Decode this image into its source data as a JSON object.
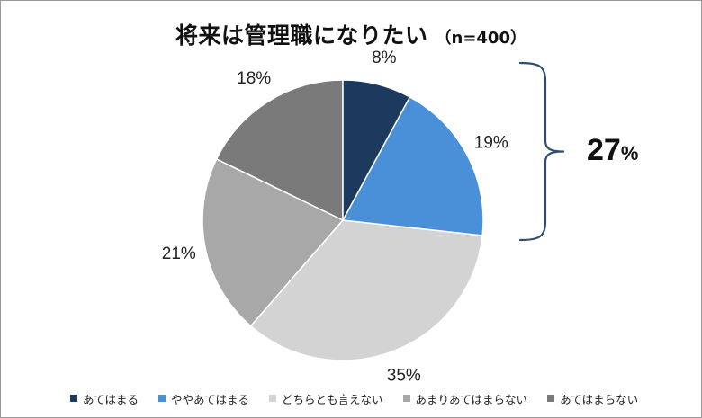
{
  "chart_data": {
    "type": "pie",
    "title": "将来は管理職になりたい",
    "subtitle": "（n=400）",
    "categories": [
      "あてはまる",
      "ややあてはまる",
      "どちらとも言えない",
      "あまりあてはまらない",
      "あてはまらない"
    ],
    "values": [
      8,
      19,
      35,
      21,
      18
    ],
    "value_labels": [
      "8%",
      "19%",
      "35%",
      "21%",
      "18%"
    ],
    "colors": [
      "#1b3a5e",
      "#4a90d9",
      "#d3d3d3",
      "#a8a8a8",
      "#7a7a7a"
    ],
    "legend_position": "bottom",
    "annotation": {
      "type": "bracket",
      "groups": [
        "あてはまる",
        "ややあてはまる"
      ],
      "total_value": "27",
      "total_unit": "%"
    }
  }
}
